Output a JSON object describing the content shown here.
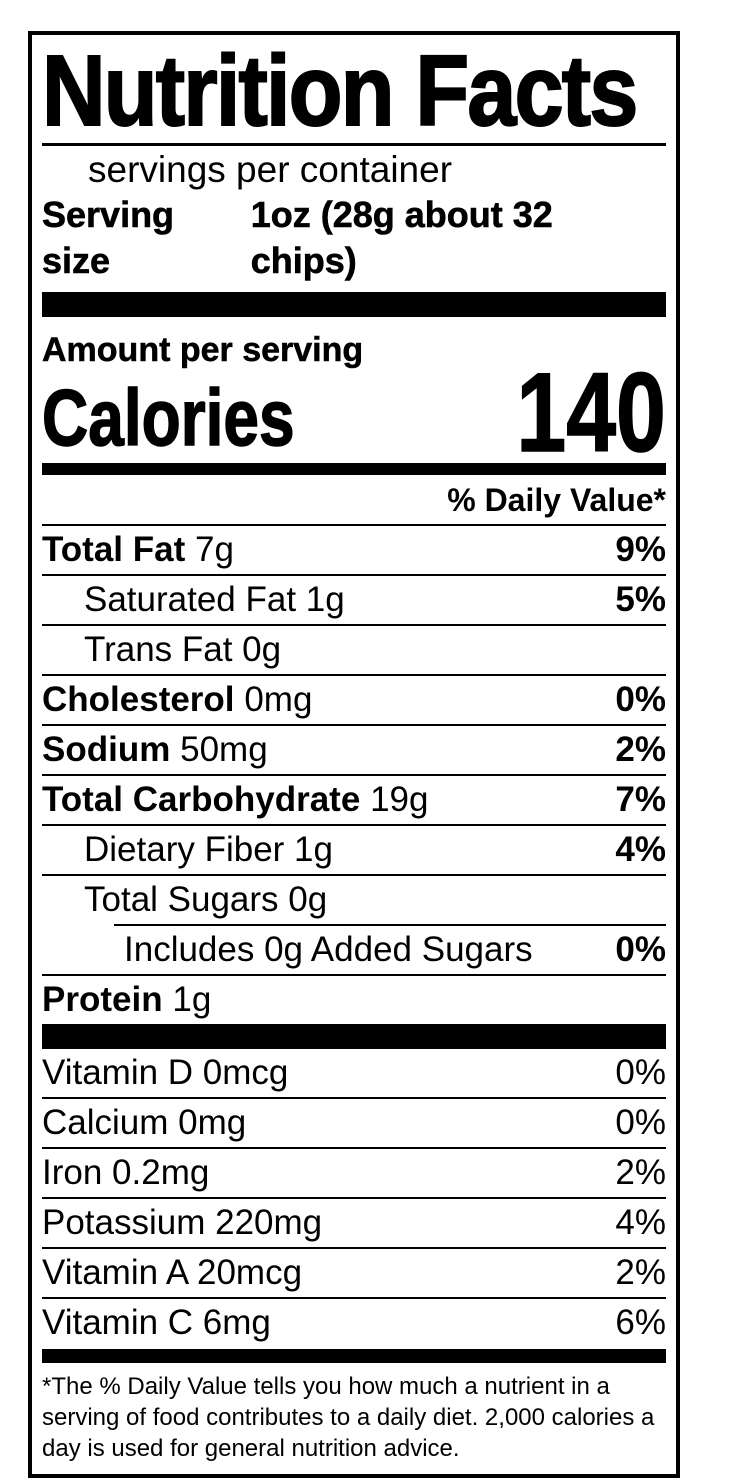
{
  "colors": {
    "ink": "#000000",
    "background": "#ffffff"
  },
  "label": {
    "title": "Nutrition Facts",
    "servings_line": "servings per container",
    "serving_size": {
      "label": "Serving size",
      "value": "1oz (28g about 32 chips)"
    },
    "amount_per_serving": "Amount per serving",
    "calories": {
      "label": "Calories",
      "value": "140"
    },
    "daily_value_header": "% Daily Value*",
    "nutrients": [
      {
        "bold_text": "Total Fat",
        "text": "7g",
        "dv": "9%"
      },
      {
        "bold_text": "",
        "text": "Saturated Fat 1g",
        "dv": "5%"
      },
      {
        "bold_text": "",
        "text": "Trans Fat 0g",
        "dv": ""
      },
      {
        "bold_text": "Cholesterol",
        "text": "0mg",
        "dv": "0%"
      },
      {
        "bold_text": "Sodium",
        "text": "50mg",
        "dv": "2%"
      },
      {
        "bold_text": "Total Carbohydrate",
        "text": "19g",
        "dv": "7%"
      },
      {
        "bold_text": "",
        "text": "Dietary Fiber 1g",
        "dv": "4%"
      },
      {
        "bold_text": "",
        "text": "Total Sugars 0g",
        "dv": ""
      },
      {
        "bold_text": "",
        "text": "Includes 0g Added Sugars",
        "dv": "0%"
      },
      {
        "bold_text": "Protein",
        "text": "1g",
        "dv": ""
      }
    ],
    "vitamins": [
      {
        "text": "Vitamin D 0mcg",
        "dv": "0%"
      },
      {
        "text": "Calcium 0mg",
        "dv": "0%"
      },
      {
        "text": "Iron 0.2mg",
        "dv": "2%"
      },
      {
        "text": "Potassium 220mg",
        "dv": "4%"
      },
      {
        "text": "Vitamin A 20mcg",
        "dv": "2%"
      },
      {
        "text": "Vitamin C 6mg",
        "dv": "6%"
      }
    ],
    "footnote": "*The % Daily Value tells you how much a nutrient in a serving of food contributes to a daily diet. 2,000 calories a day is used for general nutrition advice."
  }
}
